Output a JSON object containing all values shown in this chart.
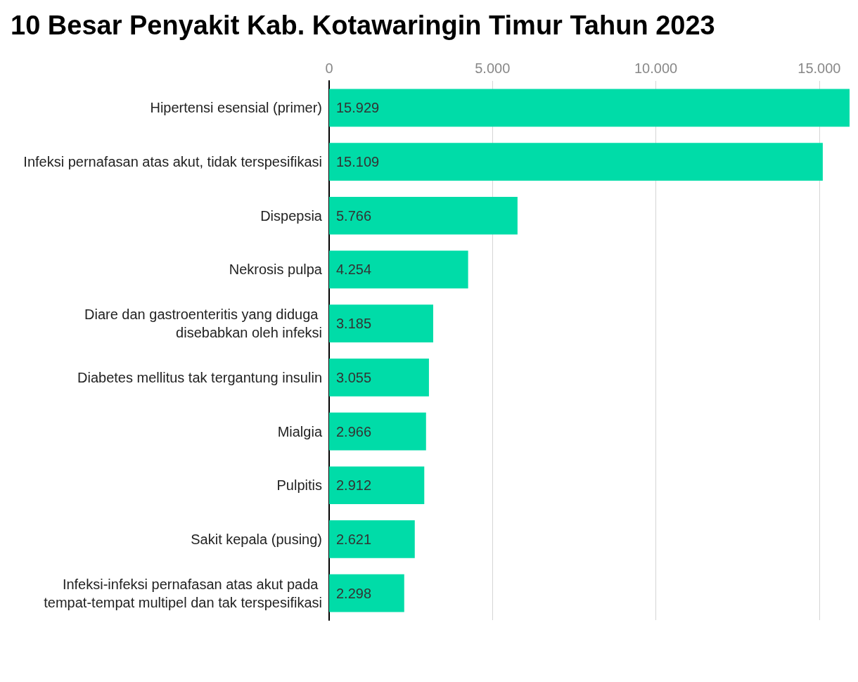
{
  "chart_data": {
    "type": "bar",
    "orientation": "horizontal",
    "title": "10 Besar Penyakit Kab. Kotawaringin Timur Tahun 2023",
    "categories": [
      "Hipertensi esensial (primer)",
      "Infeksi pernafasan atas akut, tidak terspesifikasi",
      "Dispepsia",
      "Nekrosis pulpa",
      "Diare dan gastroenteritis yang diduga disebabkan oleh infeksi",
      "Diabetes mellitus tak tergantung insulin",
      "Mialgia",
      "Pulpitis",
      "Sakit kepala (pusing)",
      "Infeksi-infeksi pernafasan atas akut pada tempat-tempat multipel dan tak terspesifikasi"
    ],
    "values": [
      15929,
      15109,
      5766,
      4254,
      3185,
      3055,
      2966,
      2912,
      2621,
      2298
    ],
    "value_labels": [
      "15.929",
      "15.109",
      "5.766",
      "4.254",
      "3.185",
      "3.055",
      "2.966",
      "2.912",
      "2.621",
      "2.298"
    ],
    "color": "#00dca8",
    "xlim": [
      0,
      15929
    ],
    "xticks": [
      0,
      {
        "value": 5000,
        "label": "5.000"
      },
      {
        "value": 10000,
        "label": "10.000"
      },
      {
        "value": 15000,
        "label": "15.000"
      }
    ],
    "grid": "x"
  }
}
